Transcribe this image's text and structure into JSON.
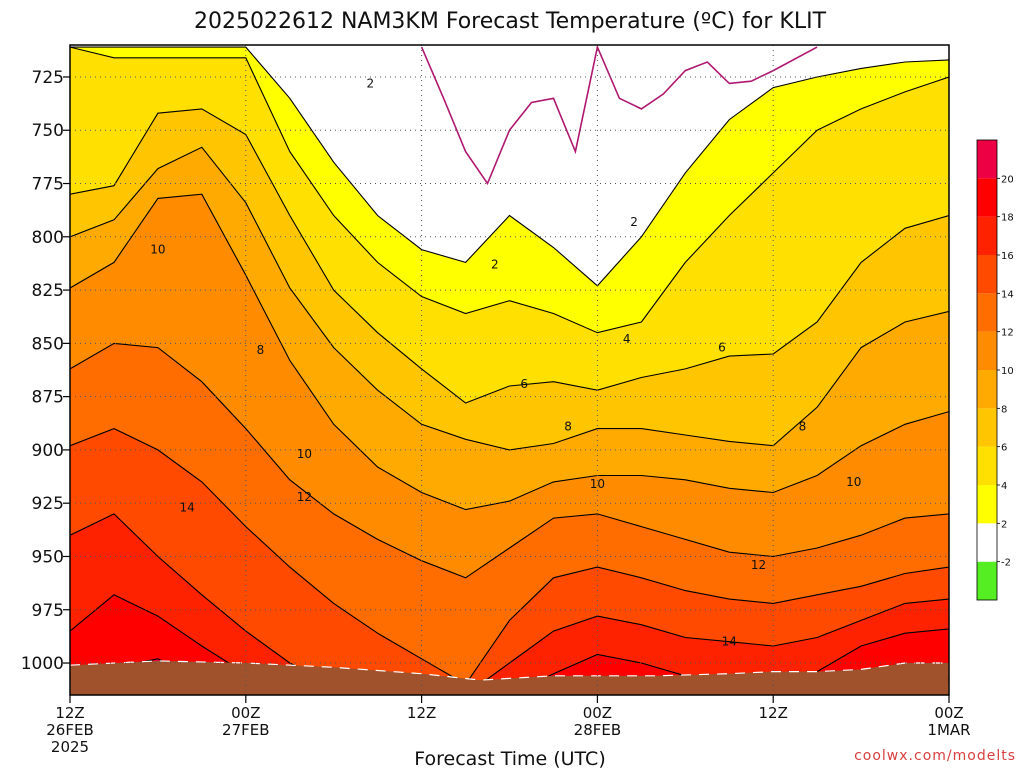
{
  "chart_data": {
    "type": "heatmap",
    "title": "2025022612 NAM3KM Forecast Temperature (ºC) for KLIT",
    "xlabel": "Forecast Time (UTC)",
    "ylabel": "",
    "credit": "coolwx.com/modelts",
    "x_ticks": [
      {
        "hour": 0,
        "label": "12Z",
        "sub1": "26FEB",
        "sub2": "2025"
      },
      {
        "hour": 12,
        "label": "00Z",
        "sub1": "27FEB",
        "sub2": ""
      },
      {
        "hour": 24,
        "label": "12Z",
        "sub1": "",
        "sub2": ""
      },
      {
        "hour": 36,
        "label": "00Z",
        "sub1": "28FEB",
        "sub2": ""
      },
      {
        "hour": 48,
        "label": "12Z",
        "sub1": "",
        "sub2": ""
      },
      {
        "hour": 60,
        "label": "00Z",
        "sub1": "1MAR",
        "sub2": ""
      }
    ],
    "xlim": [
      0,
      60
    ],
    "y_ticks": [
      "725",
      "750",
      "775",
      "800",
      "825",
      "850",
      "875",
      "900",
      "925",
      "950",
      "975",
      "1000"
    ],
    "ylim": [
      710,
      1015
    ],
    "y_reversed": true,
    "grid": true,
    "colorbar": {
      "levels": [
        "-2",
        "2",
        "4",
        "6",
        "8",
        "10",
        "12",
        "14",
        "16",
        "18",
        "20"
      ],
      "colors": [
        "#55ee22",
        "#ffffff",
        "#ffff00",
        "#ffe000",
        "#ffc600",
        "#ffaa00",
        "#ff8c00",
        "#ff6c00",
        "#ff4a00",
        "#ff2200",
        "#ff0000",
        "#ee0044"
      ]
    },
    "bands": [
      {
        "min": 2,
        "color": "#ffff00"
      },
      {
        "min": 4,
        "color": "#ffe000"
      },
      {
        "min": 6,
        "color": "#ffc600"
      },
      {
        "min": 8,
        "color": "#ffaa00"
      },
      {
        "min": 10,
        "color": "#ff8c00"
      },
      {
        "min": 12,
        "color": "#ff6c00"
      },
      {
        "min": 14,
        "color": "#ff4a00"
      },
      {
        "min": 16,
        "color": "#ff2200"
      },
      {
        "min": 18,
        "color": "#ff0000"
      },
      {
        "min": 20,
        "color": "#ee0044"
      }
    ],
    "hours": [
      0,
      3,
      6,
      9,
      12,
      15,
      18,
      21,
      24,
      27,
      30,
      33,
      36,
      39,
      42,
      45,
      48,
      51,
      54,
      57,
      60
    ],
    "isotherms": [
      {
        "value": 2,
        "p": [
          711,
          711,
          711,
          711,
          711,
          735,
          765,
          790,
          806,
          812,
          790,
          805,
          823,
          800,
          770,
          745,
          730,
          725,
          721,
          718,
          717
        ]
      },
      {
        "value": 4,
        "p": [
          711,
          716,
          716,
          716,
          716,
          760,
          790,
          812,
          828,
          836,
          830,
          836,
          845,
          840,
          812,
          790,
          770,
          750,
          740,
          732,
          725
        ]
      },
      {
        "value": 6,
        "p": [
          780,
          776,
          742,
          740,
          752,
          790,
          825,
          845,
          862,
          878,
          870,
          868,
          872,
          866,
          862,
          856,
          855,
          840,
          812,
          796,
          790
        ]
      },
      {
        "value": 8,
        "p": [
          800,
          792,
          768,
          758,
          784,
          824,
          852,
          872,
          888,
          895,
          900,
          897,
          890,
          890,
          893,
          896,
          898,
          880,
          852,
          840,
          835
        ]
      },
      {
        "value": 10,
        "p": [
          824,
          812,
          782,
          780,
          818,
          858,
          888,
          908,
          920,
          928,
          924,
          915,
          912,
          912,
          914,
          918,
          920,
          912,
          898,
          888,
          882
        ]
      },
      {
        "value": 12,
        "p": [
          862,
          850,
          852,
          868,
          890,
          914,
          930,
          942,
          952,
          960,
          946,
          932,
          930,
          936,
          942,
          948,
          950,
          946,
          940,
          932,
          930
        ]
      },
      {
        "value": 14,
        "p": [
          898,
          890,
          900,
          915,
          936,
          955,
          972,
          986,
          998,
          1010,
          980,
          960,
          955,
          960,
          966,
          970,
          972,
          968,
          964,
          958,
          955
        ]
      },
      {
        "value": 16,
        "p": [
          940,
          930,
          950,
          968,
          985,
          1000,
          1010,
          1015,
          1015,
          1015,
          1000,
          985,
          978,
          982,
          988,
          990,
          992,
          988,
          980,
          972,
          970
        ]
      },
      {
        "value": 18,
        "p": [
          985,
          968,
          978,
          992,
          1005,
          1015,
          1015,
          1015,
          1015,
          1015,
          1015,
          1005,
          996,
          1000,
          1006,
          1010,
          1012,
          1004,
          992,
          986,
          984
        ]
      },
      {
        "value": 20,
        "p": [
          1015,
          1002,
          998,
          1008,
          1015,
          1015,
          1015,
          1015,
          1015,
          1015,
          1015,
          1015,
          1015,
          1015,
          1015,
          1015,
          1015,
          1015,
          1004,
          1000,
          1004
        ]
      }
    ],
    "freezing_line": {
      "value": 0,
      "color": "#b01870",
      "hours": [
        24,
        25.5,
        27,
        28.5,
        30,
        31.5,
        33,
        34.5,
        36,
        37.5,
        39,
        40.5,
        42,
        43.5,
        45,
        46.5,
        48,
        51
      ],
      "p": [
        711,
        735,
        760,
        775,
        750,
        737,
        735,
        760,
        711,
        735,
        740,
        733,
        722,
        718,
        728,
        727,
        722,
        711
      ]
    },
    "contour_labels": [
      {
        "hour": 20.5,
        "p": 728,
        "text": "2"
      },
      {
        "hour": 29,
        "p": 813,
        "text": "2"
      },
      {
        "hour": 38.5,
        "p": 793,
        "text": "2"
      },
      {
        "hour": 38,
        "p": 848,
        "text": "4"
      },
      {
        "hour": 31,
        "p": 869,
        "text": "6"
      },
      {
        "hour": 44.5,
        "p": 852,
        "text": "6"
      },
      {
        "hour": 6,
        "p": 806,
        "text": "10"
      },
      {
        "hour": 13,
        "p": 853,
        "text": "8"
      },
      {
        "hour": 34,
        "p": 889,
        "text": "8"
      },
      {
        "hour": 50,
        "p": 889,
        "text": "8"
      },
      {
        "hour": 16,
        "p": 902,
        "text": "10"
      },
      {
        "hour": 36,
        "p": 916,
        "text": "10"
      },
      {
        "hour": 53.5,
        "p": 915,
        "text": "10"
      },
      {
        "hour": 16,
        "p": 922,
        "text": "12"
      },
      {
        "hour": 47,
        "p": 954,
        "text": "12"
      },
      {
        "hour": 8,
        "p": 927,
        "text": "14"
      },
      {
        "hour": 45,
        "p": 990,
        "text": "14"
      }
    ],
    "terrain": {
      "color": "#a0522d",
      "hours": [
        0,
        6,
        12,
        18,
        24,
        28,
        33,
        36,
        40,
        45,
        48,
        51,
        54,
        57,
        60
      ],
      "p": [
        1001,
        999,
        1000,
        1002,
        1005,
        1008,
        1006,
        1006,
        1006,
        1005,
        1004,
        1004,
        1003,
        1000,
        1000
      ]
    }
  }
}
